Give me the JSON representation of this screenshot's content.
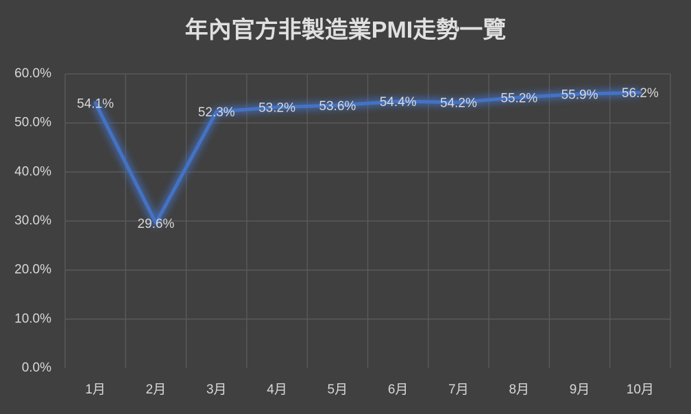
{
  "chart_data": {
    "type": "line",
    "title": "年內官方非製造業PMI走勢一覽",
    "categories": [
      "1月",
      "2月",
      "3月",
      "4月",
      "5月",
      "6月",
      "7月",
      "8月",
      "9月",
      "10月"
    ],
    "values": [
      54.1,
      29.6,
      52.3,
      53.2,
      53.6,
      54.4,
      54.2,
      55.2,
      55.9,
      56.2
    ],
    "value_labels": [
      "54.1%",
      "29.6%",
      "52.3%",
      "53.2%",
      "53.6%",
      "54.4%",
      "54.2%",
      "55.2%",
      "55.9%",
      "56.2%"
    ],
    "color": "#4472c4",
    "ylim": [
      0,
      60
    ],
    "yticks": [
      {
        "value": 0,
        "label": "0.0%"
      },
      {
        "value": 10,
        "label": "10.0%"
      },
      {
        "value": 20,
        "label": "20.0%"
      },
      {
        "value": 30,
        "label": "30.0%"
      },
      {
        "value": 40,
        "label": "40.0%"
      },
      {
        "value": 50,
        "label": "50.0%"
      },
      {
        "value": 60,
        "label": "60.0%"
      }
    ],
    "grid": true
  }
}
